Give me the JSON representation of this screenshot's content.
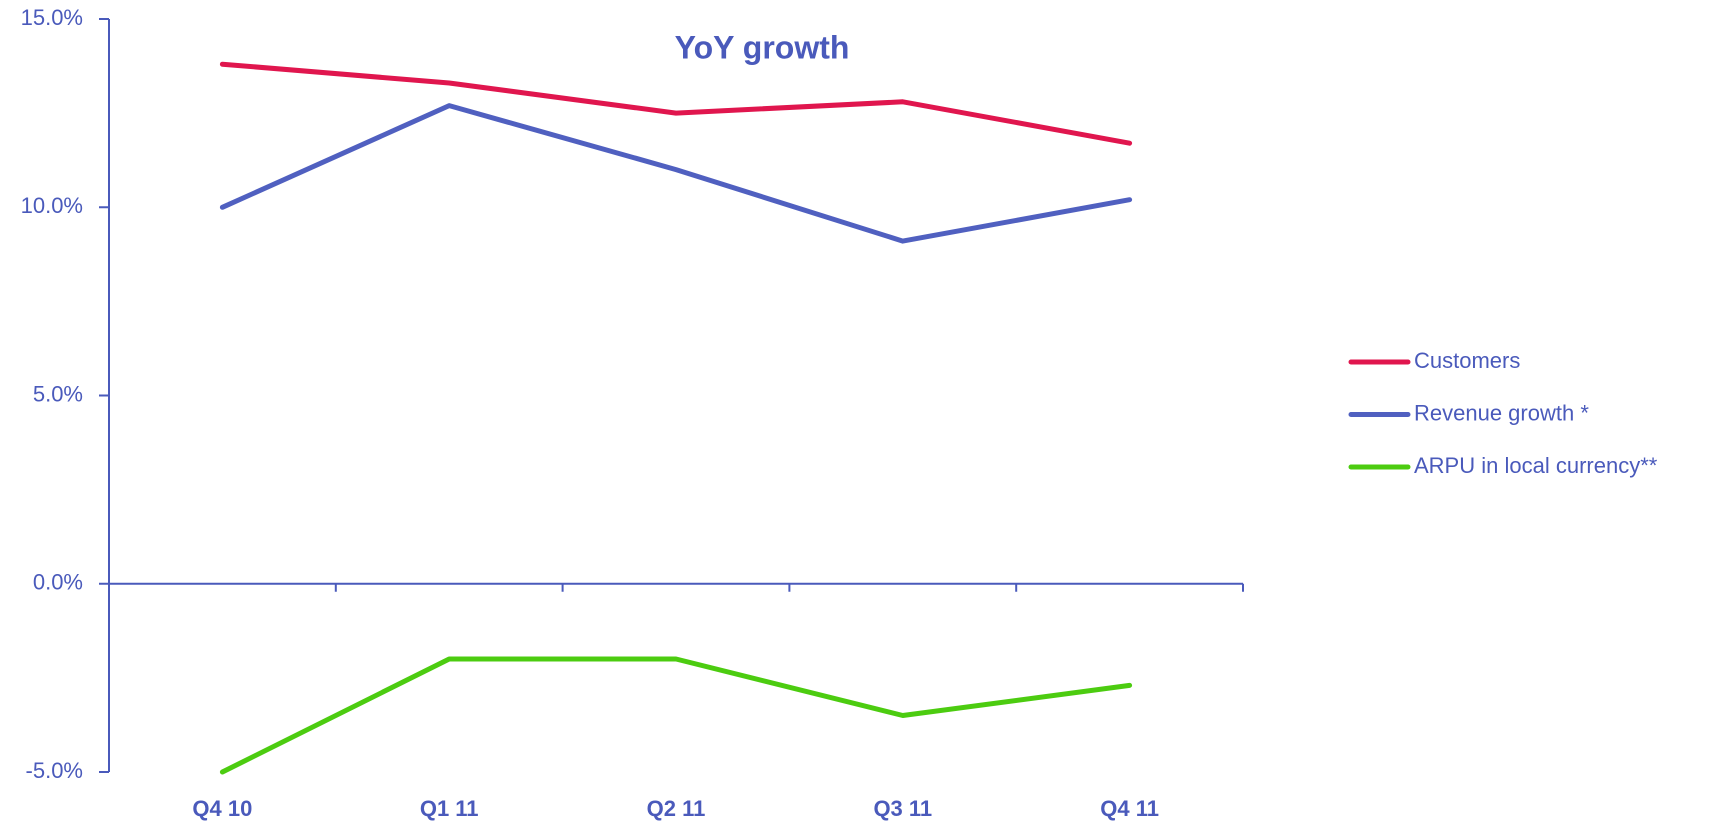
{
  "chart_data": {
    "type": "line",
    "title": "YoY growth",
    "categories": [
      "Q4 10",
      "Q1 11",
      "Q2 11",
      "Q3 11",
      "Q4 11"
    ],
    "series": [
      {
        "name": "Customers",
        "color": "#e0164e",
        "values": [
          13.8,
          13.3,
          12.5,
          12.8,
          11.7
        ]
      },
      {
        "name": "Revenue growth *",
        "color": "#5060c0",
        "values": [
          10.0,
          12.7,
          11.0,
          9.1,
          10.2
        ]
      },
      {
        "name": "ARPU in local currency**",
        "color": "#4ccc10",
        "values": [
          -5.0,
          -2.0,
          -2.0,
          -3.5,
          -2.7
        ]
      }
    ],
    "ylim": [
      -5,
      15
    ],
    "yticks": [
      {
        "value": -5,
        "label": "-5.0%"
      },
      {
        "value": 0,
        "label": "0.0%"
      },
      {
        "value": 5,
        "label": "5.0%"
      },
      {
        "value": 10,
        "label": "10.0%"
      },
      {
        "value": 15,
        "label": "15.0%"
      }
    ],
    "legend": "right"
  }
}
